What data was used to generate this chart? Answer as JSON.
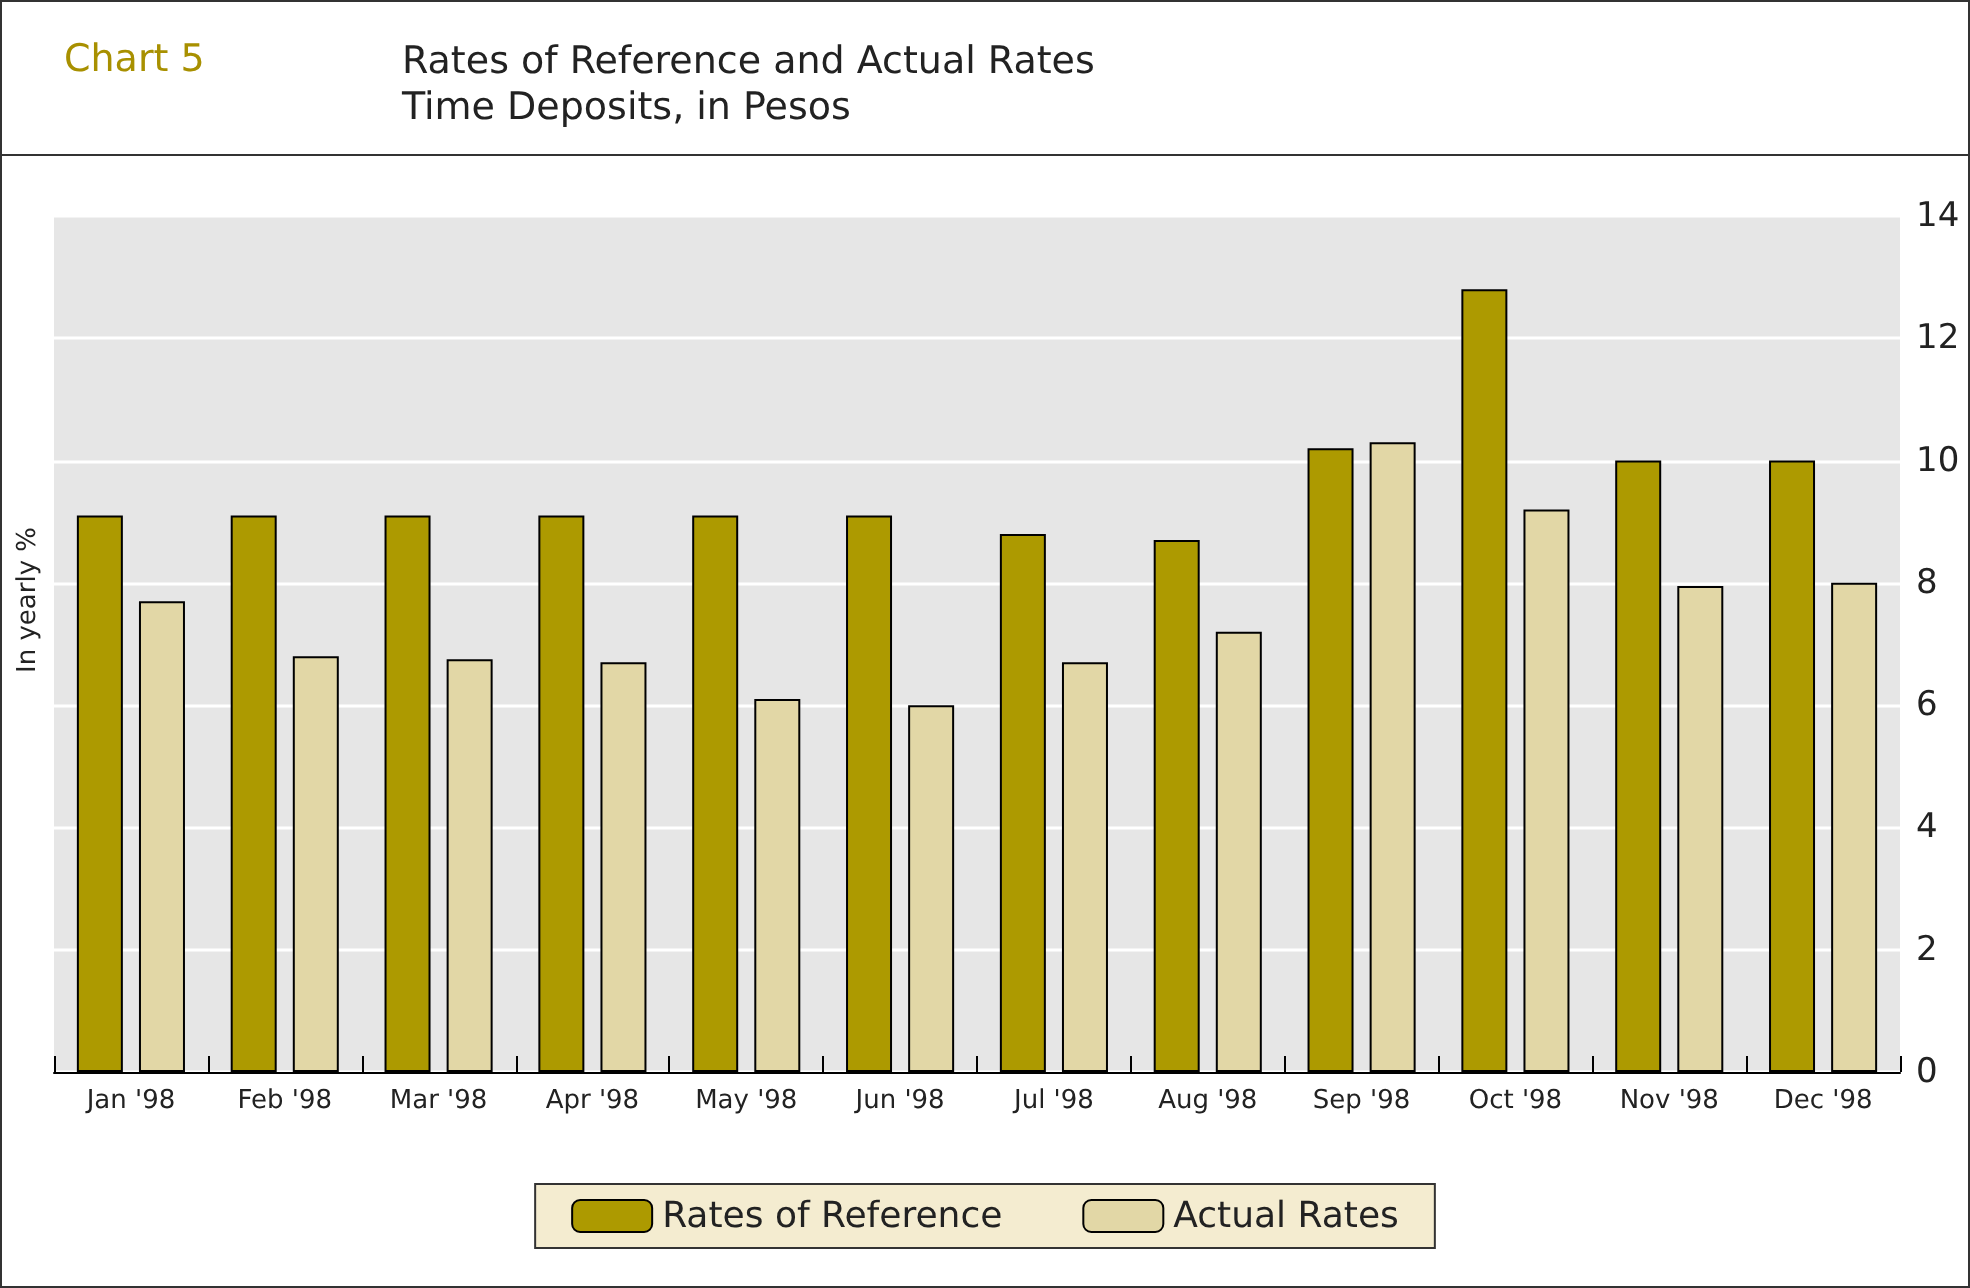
{
  "chart_data": {
    "type": "bar",
    "title": "Rates of Reference and Actual Rates",
    "subtitle": "Time Deposits, in Pesos",
    "ylabel": "In yearly %",
    "annotations": [
      "Chart 5"
    ],
    "categories": [
      "Jan '98",
      "Feb '98",
      "Mar '98",
      "Apr '98",
      "May '98",
      "Jun '98",
      "Jul '98",
      "Aug '98",
      "Sep '98",
      "Oct '98",
      "Nov '98",
      "Dec '98"
    ],
    "series": [
      {
        "name": "Rates of Reference",
        "color": "#ad9a00",
        "values": [
          9.1,
          9.1,
          9.1,
          9.1,
          9.1,
          9.1,
          8.8,
          8.7,
          10.2,
          12.8,
          10.0,
          10.0
        ]
      },
      {
        "name": "Actual Rates",
        "color": "#e2d7a6",
        "values": [
          7.7,
          6.8,
          6.75,
          6.7,
          6.1,
          6.0,
          6.7,
          7.2,
          10.3,
          9.2,
          7.95,
          8.0
        ]
      }
    ],
    "ylim": [
      0,
      14
    ],
    "yticks": [
      0,
      2,
      4,
      6,
      8,
      10,
      12,
      14
    ],
    "grid": "y",
    "legend": "bottom"
  }
}
